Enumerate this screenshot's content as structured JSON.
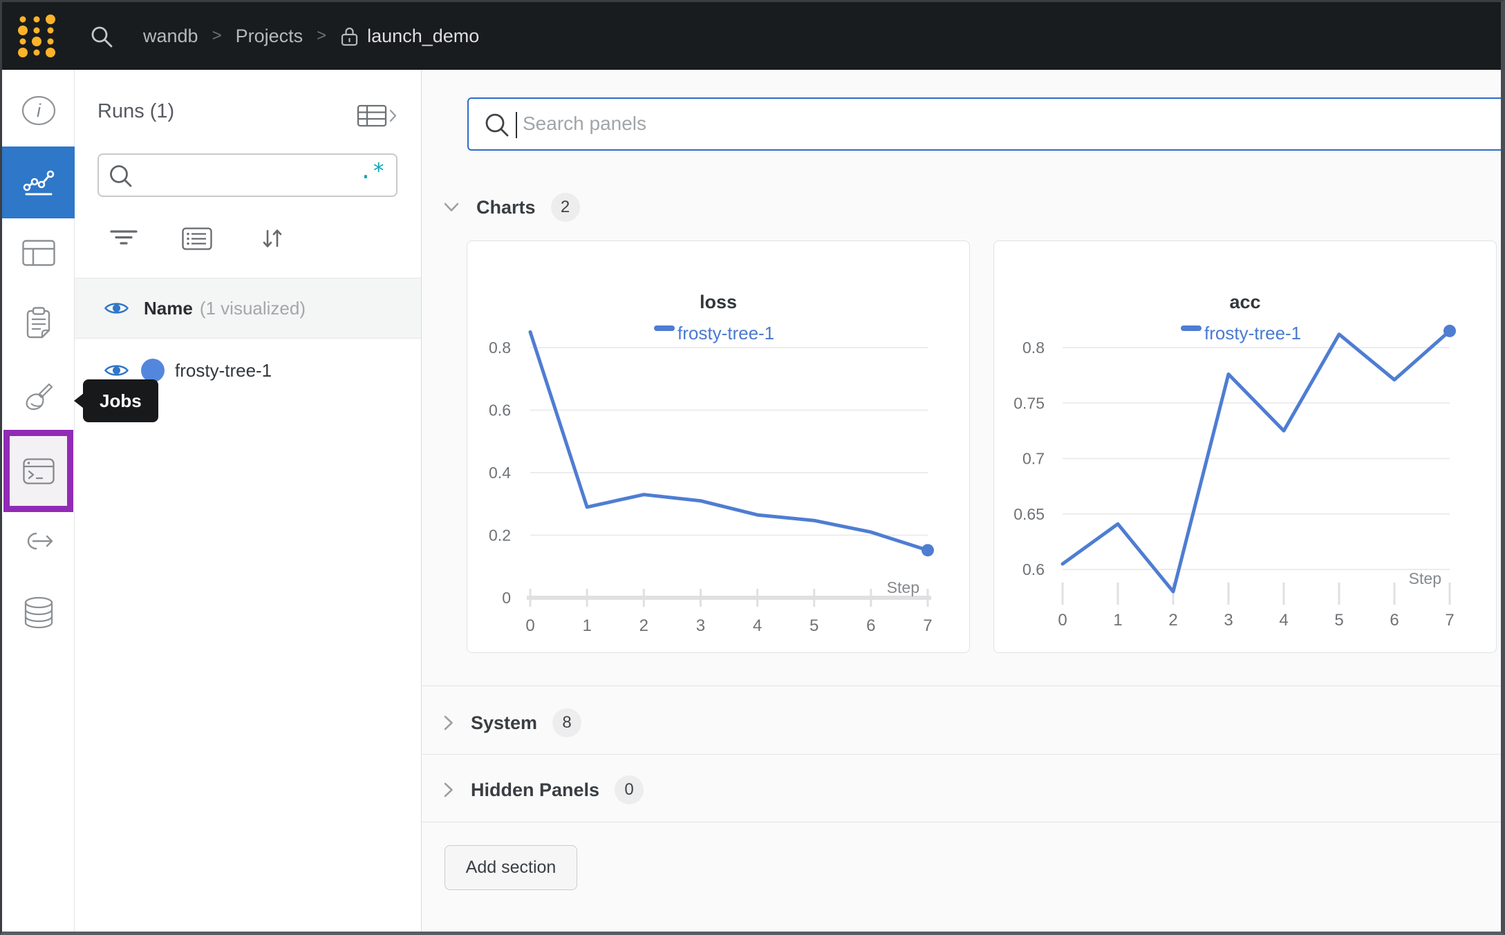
{
  "topbar": {
    "crumb_team": "wandb",
    "crumb_projects": "Projects",
    "crumb_project": "launch_demo",
    "sep1": ">",
    "sep2": ">"
  },
  "icon_rail": {
    "tooltip_label": "Jobs",
    "items": [
      "info",
      "charts-workspace",
      "table",
      "notes",
      "sweeps-broom",
      "jobs",
      "launch-link",
      "artifacts-database"
    ]
  },
  "runs_panel": {
    "title": "Runs (1)",
    "search_value": "",
    "regex_glyph": ".*",
    "header": {
      "name": "Name",
      "suffix": "(1 visualized)"
    },
    "runs": [
      {
        "name": "frosty-tree-1",
        "color": "#5387dd"
      }
    ]
  },
  "main": {
    "search": {
      "placeholder": "Search panels",
      "value": ""
    },
    "sections": {
      "charts": {
        "label": "Charts",
        "count": "2"
      },
      "system": {
        "label": "System",
        "count": "8"
      },
      "hidden": {
        "label": "Hidden Panels",
        "count": "0"
      }
    },
    "add_section_label": "Add section"
  },
  "chart_data": [
    {
      "type": "line",
      "title": "loss",
      "xlabel": "Step",
      "x": [
        0,
        1,
        2,
        3,
        4,
        5,
        6,
        7
      ],
      "series": [
        {
          "name": "frosty-tree-1",
          "color": "#4e7dd2",
          "values": [
            0.85,
            0.29,
            0.33,
            0.31,
            0.265,
            0.247,
            0.21,
            0.152
          ]
        }
      ],
      "yticks": [
        "0",
        "0.2",
        "0.4",
        "0.6",
        "0.8"
      ],
      "ylim": [
        0,
        0.88
      ],
      "grid": true,
      "legend_position": "top"
    },
    {
      "type": "line",
      "title": "acc",
      "xlabel": "Step",
      "x": [
        0,
        1,
        2,
        3,
        4,
        5,
        6,
        7
      ],
      "series": [
        {
          "name": "frosty-tree-1",
          "color": "#4e7dd2",
          "values": [
            0.605,
            0.641,
            0.58,
            0.776,
            0.725,
            0.812,
            0.771,
            0.815
          ]
        }
      ],
      "yticks": [
        "0.6",
        "0.65",
        "0.7",
        "0.75",
        "0.8"
      ],
      "ylim": [
        0.578,
        0.83
      ],
      "grid": true,
      "legend_position": "top"
    }
  ],
  "colors": {
    "topbar_bg": "#191c1f",
    "accent_blue_tile": "#2e77c9",
    "purple_highlight": "#912bb5",
    "run_blue": "#5387dd",
    "line_blue": "#4e7dd2",
    "teal_regex": "#0ea5b5",
    "search_focus_border": "#2d6ccb",
    "logo_yellow": "#fcb32a"
  }
}
